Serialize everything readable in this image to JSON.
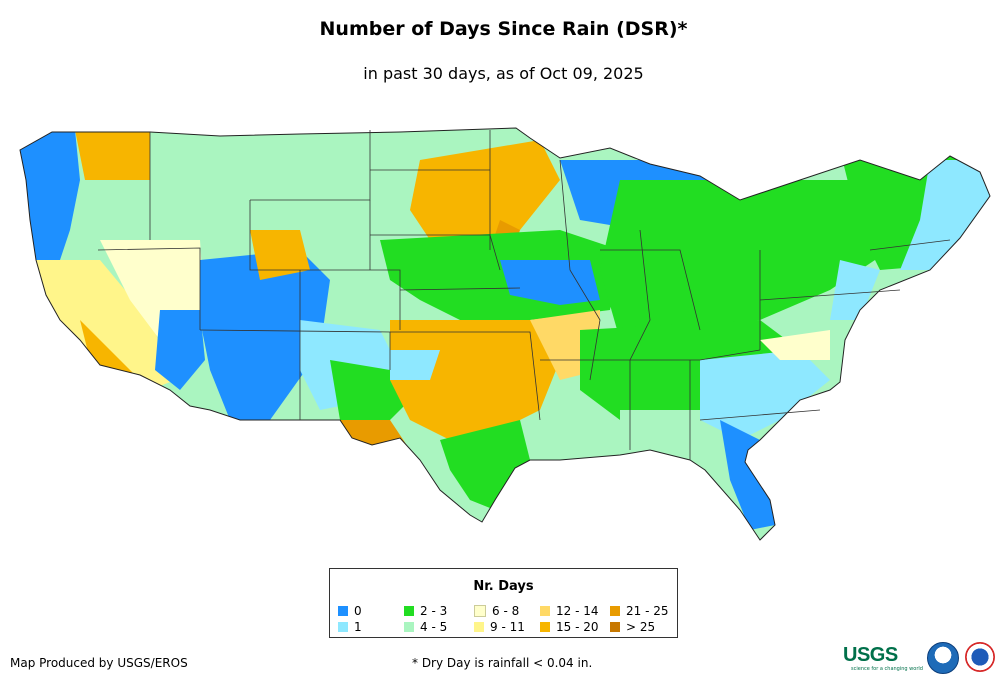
{
  "title": "Number of Days Since Rain (DSR)*",
  "subtitle": "in past 30 days, as of Oct 09, 2025",
  "legend": {
    "title": "Nr. Days",
    "items": [
      {
        "label": "0",
        "color": "#1e90ff"
      },
      {
        "label": "1",
        "color": "#8ee8ff"
      },
      {
        "label": "2 - 3",
        "color": "#22dd22"
      },
      {
        "label": "4 - 5",
        "color": "#aaf5c0"
      },
      {
        "label": "6 - 8",
        "color": "#ffffcc"
      },
      {
        "label": "9 - 11",
        "color": "#fff58a"
      },
      {
        "label": "12 - 14",
        "color": "#ffd966"
      },
      {
        "label": "15 - 20",
        "color": "#f7b500"
      },
      {
        "label": "21 - 25",
        "color": "#e89b00"
      },
      {
        "label": "> 25",
        "color": "#c77800"
      }
    ]
  },
  "footer": {
    "credit": "Map Produced by USGS/EROS",
    "note": "* Dry Day is rainfall < 0.04 in."
  },
  "logos": {
    "usgs": "USGS",
    "usgs_tagline": "science for a changing world",
    "noaa": "noaa-logo",
    "nws": "nws-logo"
  }
}
